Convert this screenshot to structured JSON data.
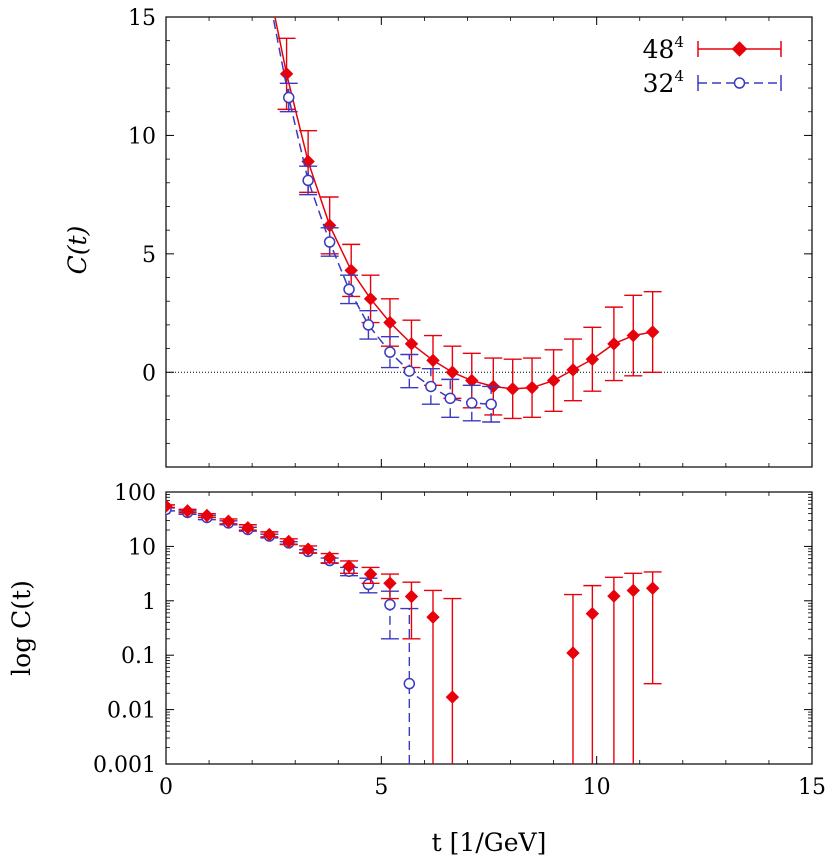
{
  "chart_data": [
    {
      "type": "line",
      "panel": "top",
      "xlabel": "",
      "ylabel": "C(t)",
      "xlim": [
        0,
        15
      ],
      "ylim": [
        -4,
        15
      ],
      "yticks": [
        0,
        5,
        10,
        15
      ],
      "xticks": [
        0,
        5,
        10,
        15
      ],
      "xtick_labels_shown": false,
      "zero_line": true,
      "legend_position": "top-right",
      "series": [
        {
          "name": "48",
          "name_superscript": "4",
          "color": "#e8000b",
          "marker": "filled-diamond",
          "line": "solid",
          "points": [
            {
              "x": 2.8,
              "y": 12.6,
              "err": 1.5
            },
            {
              "x": 3.3,
              "y": 8.9,
              "err": 1.3
            },
            {
              "x": 3.8,
              "y": 6.2,
              "err": 1.2
            },
            {
              "x": 4.3,
              "y": 4.3,
              "err": 1.1
            },
            {
              "x": 4.75,
              "y": 3.1,
              "err": 1.0
            },
            {
              "x": 5.2,
              "y": 2.1,
              "err": 1.0
            },
            {
              "x": 5.7,
              "y": 1.2,
              "err": 1.0
            },
            {
              "x": 6.2,
              "y": 0.5,
              "err": 1.05
            },
            {
              "x": 6.65,
              "y": 0.0,
              "err": 1.1
            },
            {
              "x": 7.1,
              "y": -0.35,
              "err": 1.15
            },
            {
              "x": 7.6,
              "y": -0.6,
              "err": 1.2
            },
            {
              "x": 8.05,
              "y": -0.7,
              "err": 1.25
            },
            {
              "x": 8.5,
              "y": -0.65,
              "err": 1.25
            },
            {
              "x": 9.0,
              "y": -0.35,
              "err": 1.3
            },
            {
              "x": 9.45,
              "y": 0.1,
              "err": 1.3
            },
            {
              "x": 9.9,
              "y": 0.55,
              "err": 1.35
            },
            {
              "x": 10.4,
              "y": 1.2,
              "err": 1.55
            },
            {
              "x": 10.85,
              "y": 1.55,
              "err": 1.7
            },
            {
              "x": 11.3,
              "y": 1.7,
              "err": 1.7
            }
          ]
        },
        {
          "name": "32",
          "name_superscript": "4",
          "color": "#3a3ac0",
          "marker": "open-circle",
          "line": "dashed",
          "points": [
            {
              "x": 2.85,
              "y": 11.6,
              "err": 0.6
            },
            {
              "x": 3.3,
              "y": 8.1,
              "err": 0.6
            },
            {
              "x": 3.8,
              "y": 5.5,
              "err": 0.6
            },
            {
              "x": 4.25,
              "y": 3.5,
              "err": 0.6
            },
            {
              "x": 4.7,
              "y": 2.0,
              "err": 0.6
            },
            {
              "x": 5.2,
              "y": 0.85,
              "err": 0.65
            },
            {
              "x": 5.65,
              "y": 0.05,
              "err": 0.7
            },
            {
              "x": 6.15,
              "y": -0.6,
              "err": 0.75
            },
            {
              "x": 6.6,
              "y": -1.1,
              "err": 0.8
            },
            {
              "x": 7.1,
              "y": -1.3,
              "err": 0.75
            },
            {
              "x": 7.55,
              "y": -1.35,
              "err": 0.75
            }
          ]
        }
      ]
    },
    {
      "type": "scatter",
      "panel": "bottom",
      "xlabel": "t [1/GeV]",
      "ylabel": "log C(t)",
      "xlim": [
        0,
        15
      ],
      "ylim": [
        0.001,
        100
      ],
      "log_y": true,
      "xticks": [
        0,
        5,
        10,
        15
      ],
      "yticks": [
        0.001,
        0.01,
        0.1,
        1,
        10,
        100
      ],
      "ytick_labels": [
        "0.001",
        "0.01",
        "0.1",
        "1",
        "10",
        "100"
      ],
      "series": [
        {
          "name": "48",
          "name_superscript": "4",
          "color": "#e8000b",
          "marker": "filled-diamond",
          "points": [
            {
              "x": 0.0,
              "y": 55,
              "lo": 52,
              "hi": 58
            },
            {
              "x": 0.5,
              "y": 45,
              "lo": 42,
              "hi": 48
            },
            {
              "x": 0.95,
              "y": 37,
              "lo": 34,
              "hi": 40
            },
            {
              "x": 1.45,
              "y": 29,
              "lo": 26,
              "hi": 32
            },
            {
              "x": 1.9,
              "y": 22,
              "lo": 20,
              "hi": 25
            },
            {
              "x": 2.4,
              "y": 16.5,
              "lo": 15,
              "hi": 18.5
            },
            {
              "x": 2.85,
              "y": 12.3,
              "lo": 10.8,
              "hi": 13.8
            },
            {
              "x": 3.3,
              "y": 8.9,
              "lo": 7.6,
              "hi": 10.2
            },
            {
              "x": 3.8,
              "y": 6.2,
              "lo": 5.0,
              "hi": 7.4
            },
            {
              "x": 4.25,
              "y": 4.3,
              "lo": 3.2,
              "hi": 5.4
            },
            {
              "x": 4.75,
              "y": 3.1,
              "lo": 2.1,
              "hi": 4.1
            },
            {
              "x": 5.2,
              "y": 2.1,
              "lo": 1.1,
              "hi": 3.1
            },
            {
              "x": 5.7,
              "y": 1.2,
              "lo": 0.2,
              "hi": 2.2
            },
            {
              "x": 6.2,
              "y": 0.5,
              "lo": 0.0005,
              "hi": 1.55
            },
            {
              "x": 6.65,
              "y": 0.017,
              "lo": 0.0005,
              "hi": 1.1
            },
            {
              "x": 9.45,
              "y": 0.11,
              "lo": 0.0005,
              "hi": 1.3
            },
            {
              "x": 9.9,
              "y": 0.58,
              "lo": 0.0005,
              "hi": 1.9
            },
            {
              "x": 10.4,
              "y": 1.22,
              "lo": 0.0005,
              "hi": 2.7
            },
            {
              "x": 10.85,
              "y": 1.55,
              "lo": 0.0005,
              "hi": 3.2
            },
            {
              "x": 11.3,
              "y": 1.7,
              "lo": 0.03,
              "hi": 3.4
            }
          ]
        },
        {
          "name": "32",
          "name_superscript": "4",
          "color": "#3a3ac0",
          "marker": "open-circle",
          "points": [
            {
              "x": 0.0,
              "y": 48,
              "lo": 45,
              "hi": 51
            },
            {
              "x": 0.5,
              "y": 42,
              "lo": 39,
              "hi": 45
            },
            {
              "x": 0.95,
              "y": 34,
              "lo": 31,
              "hi": 37
            },
            {
              "x": 1.45,
              "y": 27,
              "lo": 25,
              "hi": 29.5
            },
            {
              "x": 1.9,
              "y": 20.5,
              "lo": 19,
              "hi": 22.5
            },
            {
              "x": 2.4,
              "y": 15.5,
              "lo": 14.3,
              "hi": 16.8
            },
            {
              "x": 2.85,
              "y": 11.6,
              "lo": 11.0,
              "hi": 12.2
            },
            {
              "x": 3.3,
              "y": 8.1,
              "lo": 7.5,
              "hi": 8.7
            },
            {
              "x": 3.8,
              "y": 5.5,
              "lo": 4.9,
              "hi": 6.1
            },
            {
              "x": 4.25,
              "y": 3.5,
              "lo": 2.9,
              "hi": 4.1
            },
            {
              "x": 4.7,
              "y": 2.0,
              "lo": 1.4,
              "hi": 2.6
            },
            {
              "x": 5.2,
              "y": 0.85,
              "lo": 0.2,
              "hi": 1.5
            },
            {
              "x": 5.65,
              "y": 0.03,
              "lo": 0.0005,
              "hi": 0.72
            }
          ]
        }
      ]
    }
  ]
}
